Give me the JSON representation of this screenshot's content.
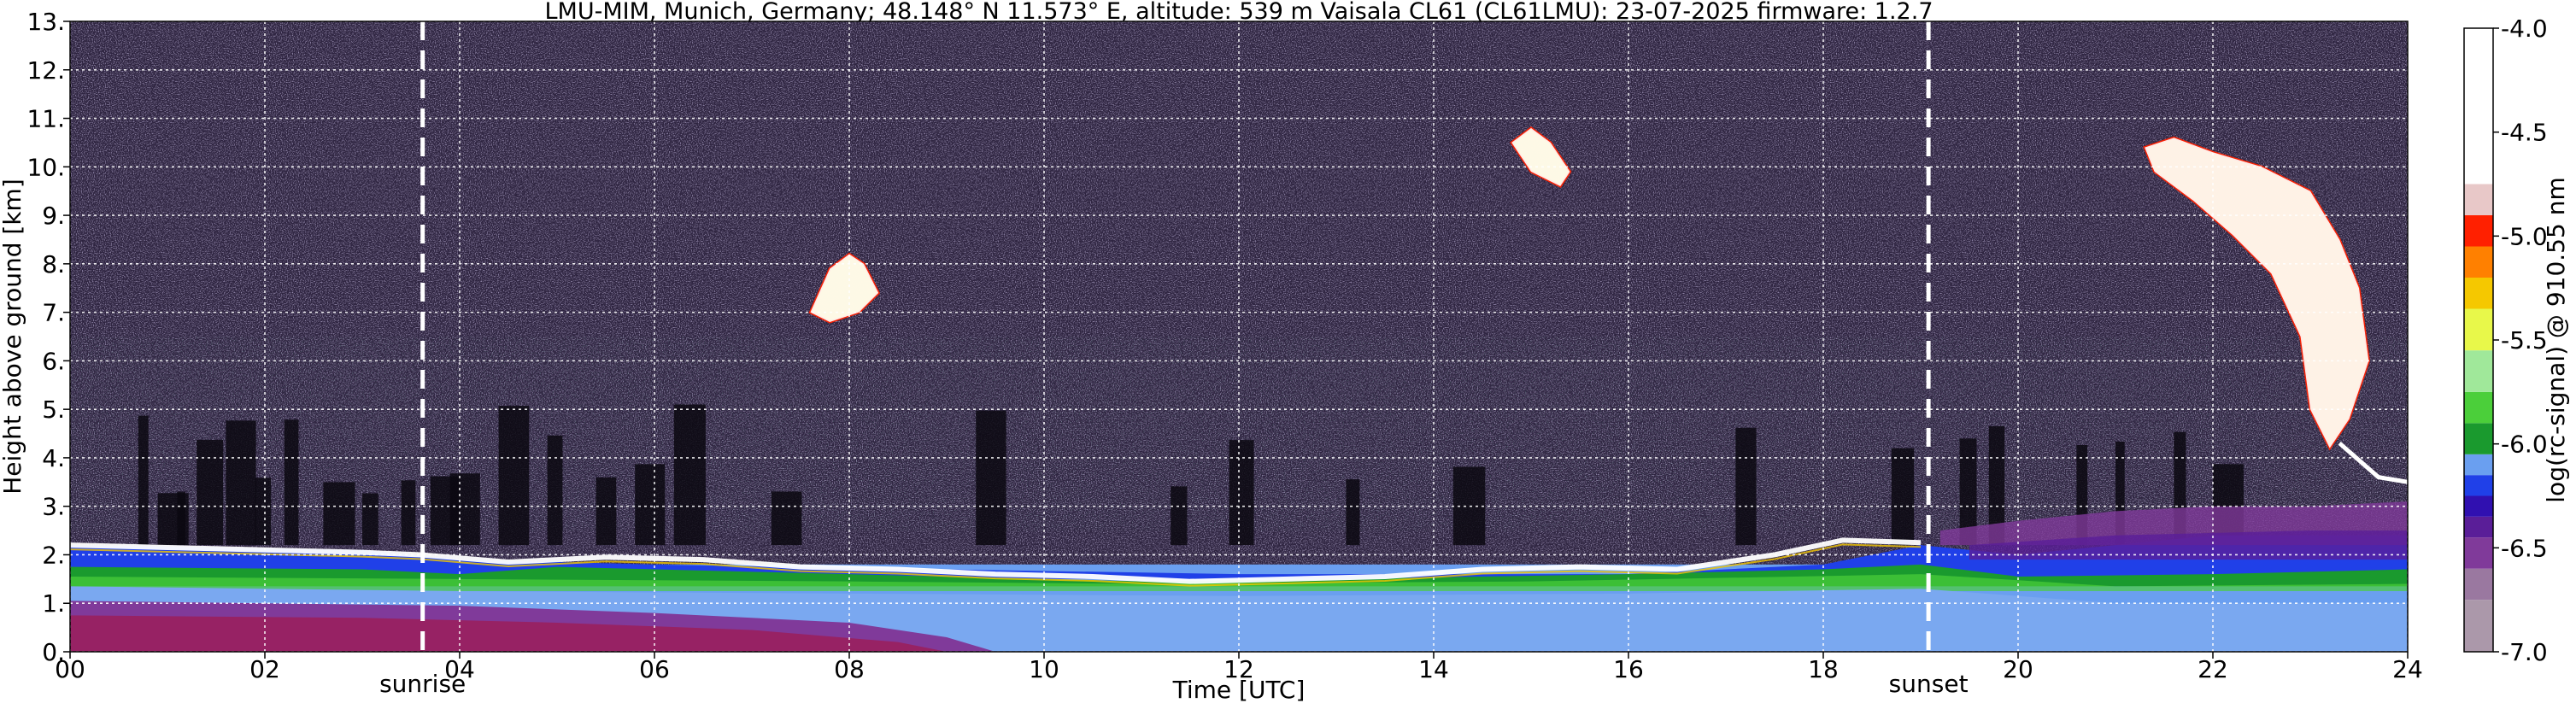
{
  "chart_data": {
    "type": "heatmap",
    "title": "LMU-MIM, Munich, Germany; 48.148° N 11.573° E, altitude: 539 m    Vaisala CL61 (CL61LMU): 23-07-2025    firmware: 1.2.7",
    "xlabel": "Time [UTC]",
    "ylabel": "Height above ground [km]",
    "xlim": [
      0,
      24
    ],
    "ylim": [
      0,
      13
    ],
    "x_ticks": [
      {
        "value": 0,
        "label": "00"
      },
      {
        "value": 2,
        "label": "02"
      },
      {
        "value": 4,
        "label": "04"
      },
      {
        "value": 6,
        "label": "06"
      },
      {
        "value": 8,
        "label": "08"
      },
      {
        "value": 10,
        "label": "10"
      },
      {
        "value": 12,
        "label": "12"
      },
      {
        "value": 14,
        "label": "14"
      },
      {
        "value": 16,
        "label": "16"
      },
      {
        "value": 18,
        "label": "18"
      },
      {
        "value": 20,
        "label": "20"
      },
      {
        "value": 22,
        "label": "22"
      },
      {
        "value": 24,
        "label": "24"
      }
    ],
    "y_ticks": [
      {
        "value": 0,
        "label": "0."
      },
      {
        "value": 1,
        "label": "1."
      },
      {
        "value": 2,
        "label": "2."
      },
      {
        "value": 3,
        "label": "3."
      },
      {
        "value": 4,
        "label": "4."
      },
      {
        "value": 5,
        "label": "5."
      },
      {
        "value": 6,
        "label": "6."
      },
      {
        "value": 7,
        "label": "7."
      },
      {
        "value": 8,
        "label": "8."
      },
      {
        "value": 9,
        "label": "9."
      },
      {
        "value": 10,
        "label": "10."
      },
      {
        "value": 11,
        "label": "11."
      },
      {
        "value": 12,
        "label": "12."
      },
      {
        "value": 13,
        "label": "13."
      }
    ],
    "grid": true,
    "annotations": [
      {
        "label": "sunrise",
        "x": 3.62
      },
      {
        "label": "sunset",
        "x": 19.08
      }
    ],
    "colorbar": {
      "label": "log(rc-signal) @ 910.55 nm",
      "range": [
        -7.0,
        -4.0
      ],
      "ticks": [
        {
          "value": -7.0,
          "label": "-7.0"
        },
        {
          "value": -6.5,
          "label": "-6.5"
        },
        {
          "value": -6.0,
          "label": "-6.0"
        },
        {
          "value": -5.5,
          "label": "-5.5"
        },
        {
          "value": -5.0,
          "label": "-5.0"
        },
        {
          "value": -4.5,
          "label": "-4.5"
        },
        {
          "value": -4.0,
          "label": "-4.0"
        }
      ],
      "stops": [
        {
          "value": -7.0,
          "color": "#ab98aa"
        },
        {
          "value": -6.75,
          "color": "#9a78a0"
        },
        {
          "value": -6.6,
          "color": "#803a9a"
        },
        {
          "value": -6.45,
          "color": "#5a1e98"
        },
        {
          "value": -6.35,
          "color": "#3010b0"
        },
        {
          "value": -6.25,
          "color": "#2040e8"
        },
        {
          "value": -6.15,
          "color": "#6a9ff0"
        },
        {
          "value": -6.05,
          "color": "#1a9a2e"
        },
        {
          "value": -5.9,
          "color": "#4bcf3a"
        },
        {
          "value": -5.75,
          "color": "#a0e89a"
        },
        {
          "value": -5.55,
          "color": "#e8f84a"
        },
        {
          "value": -5.35,
          "color": "#f5c800"
        },
        {
          "value": -5.2,
          "color": "#ff8000"
        },
        {
          "value": -5.05,
          "color": "#ff2000"
        },
        {
          "value": -4.9,
          "color": "#e8c8c8"
        },
        {
          "value": -4.75,
          "color": "#ffffff"
        },
        {
          "value": -4.0,
          "color": "#ffffff"
        }
      ]
    },
    "features": [
      {
        "kind": "aerosol-layer",
        "x": [
          0,
          24
        ],
        "top_km": 1.8
      },
      {
        "kind": "boundary-layer-top",
        "x": [
          0,
          19
        ],
        "height_km": [
          2.2,
          2.0,
          1.7,
          1.5,
          1.5,
          1.7,
          2.3
        ]
      },
      {
        "kind": "cloud",
        "x": [
          7.6,
          8.3
        ],
        "height_km": [
          6.8,
          8.2
        ]
      },
      {
        "kind": "cloud",
        "x": [
          14.8,
          15.4
        ],
        "height_km": [
          9.6,
          10.8
        ]
      },
      {
        "kind": "cloud",
        "x": [
          21.2,
          23.6
        ],
        "height_km": [
          4.0,
          10.6
        ]
      }
    ]
  }
}
